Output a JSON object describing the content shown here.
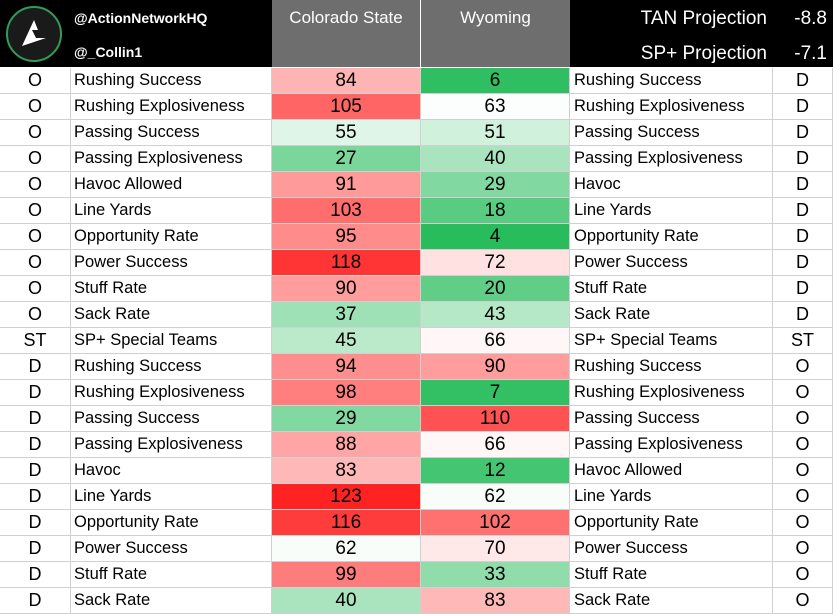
{
  "header": {
    "handle_primary": "@ActionNetworkHQ",
    "handle_secondary": "@_Collin1",
    "logo_icon": "action-network-logo",
    "team1": "Colorado State",
    "team2": "Wyoming",
    "tan_label": "TAN Projection",
    "tan_value": "-8.8",
    "sp_label": "SP+ Projection",
    "sp_value": "-7.1"
  },
  "colors": {
    "header_bg": "#000000",
    "team_header_bg": "#6e6e6e",
    "scale_best": "#1db954",
    "scale_mid": "#ffffff",
    "scale_worst": "#ff1a1a"
  },
  "rows": [
    {
      "side": "O",
      "stat": "Rushing Success",
      "v1": "84",
      "v2": "6",
      "stat2": "Rushing Success",
      "side2": "D"
    },
    {
      "side": "O",
      "stat": "Rushing Explosiveness",
      "v1": "105",
      "v2": "63",
      "stat2": "Rushing Explosiveness",
      "side2": "D"
    },
    {
      "side": "O",
      "stat": "Passing Success",
      "v1": "55",
      "v2": "51",
      "stat2": "Passing Success",
      "side2": "D"
    },
    {
      "side": "O",
      "stat": "Passing Explosiveness",
      "v1": "27",
      "v2": "40",
      "stat2": "Passing Explosiveness",
      "side2": "D"
    },
    {
      "side": "O",
      "stat": "Havoc Allowed",
      "v1": "91",
      "v2": "29",
      "stat2": "Havoc",
      "side2": "D"
    },
    {
      "side": "O",
      "stat": "Line Yards",
      "v1": "103",
      "v2": "18",
      "stat2": "Line Yards",
      "side2": "D"
    },
    {
      "side": "O",
      "stat": "Opportunity Rate",
      "v1": "95",
      "v2": "4",
      "stat2": "Opportunity Rate",
      "side2": "D"
    },
    {
      "side": "O",
      "stat": "Power Success",
      "v1": "118",
      "v2": "72",
      "stat2": "Power Success",
      "side2": "D"
    },
    {
      "side": "O",
      "stat": "Stuff Rate",
      "v1": "90",
      "v2": "20",
      "stat2": "Stuff Rate",
      "side2": "D"
    },
    {
      "side": "O",
      "stat": "Sack Rate",
      "v1": "37",
      "v2": "43",
      "stat2": "Sack Rate",
      "side2": "D"
    },
    {
      "side": "ST",
      "stat": "SP+ Special Teams",
      "v1": "45",
      "v2": "66",
      "stat2": "SP+ Special Teams",
      "side2": "ST"
    },
    {
      "side": "D",
      "stat": "Rushing Success",
      "v1": "94",
      "v2": "90",
      "stat2": "Rushing Success",
      "side2": "O"
    },
    {
      "side": "D",
      "stat": "Rushing Explosiveness",
      "v1": "98",
      "v2": "7",
      "stat2": "Rushing Explosiveness",
      "side2": "O"
    },
    {
      "side": "D",
      "stat": "Passing Success",
      "v1": "29",
      "v2": "110",
      "stat2": "Passing Success",
      "side2": "O"
    },
    {
      "side": "D",
      "stat": "Passing Explosiveness",
      "v1": "88",
      "v2": "66",
      "stat2": "Passing Explosiveness",
      "side2": "O"
    },
    {
      "side": "D",
      "stat": "Havoc",
      "v1": "83",
      "v2": "12",
      "stat2": "Havoc Allowed",
      "side2": "O"
    },
    {
      "side": "D",
      "stat": "Line Yards",
      "v1": "123",
      "v2": "62",
      "stat2": "Line Yards",
      "side2": "O"
    },
    {
      "side": "D",
      "stat": "Opportunity Rate",
      "v1": "116",
      "v2": "102",
      "stat2": "Opportunity Rate",
      "side2": "O"
    },
    {
      "side": "D",
      "stat": "Power Success",
      "v1": "62",
      "v2": "70",
      "stat2": "Power Success",
      "side2": "O"
    },
    {
      "side": "D",
      "stat": "Stuff Rate",
      "v1": "99",
      "v2": "33",
      "stat2": "Stuff Rate",
      "side2": "O"
    },
    {
      "side": "D",
      "stat": "Sack Rate",
      "v1": "40",
      "v2": "83",
      "stat2": "Sack Rate",
      "side2": "O"
    }
  ]
}
